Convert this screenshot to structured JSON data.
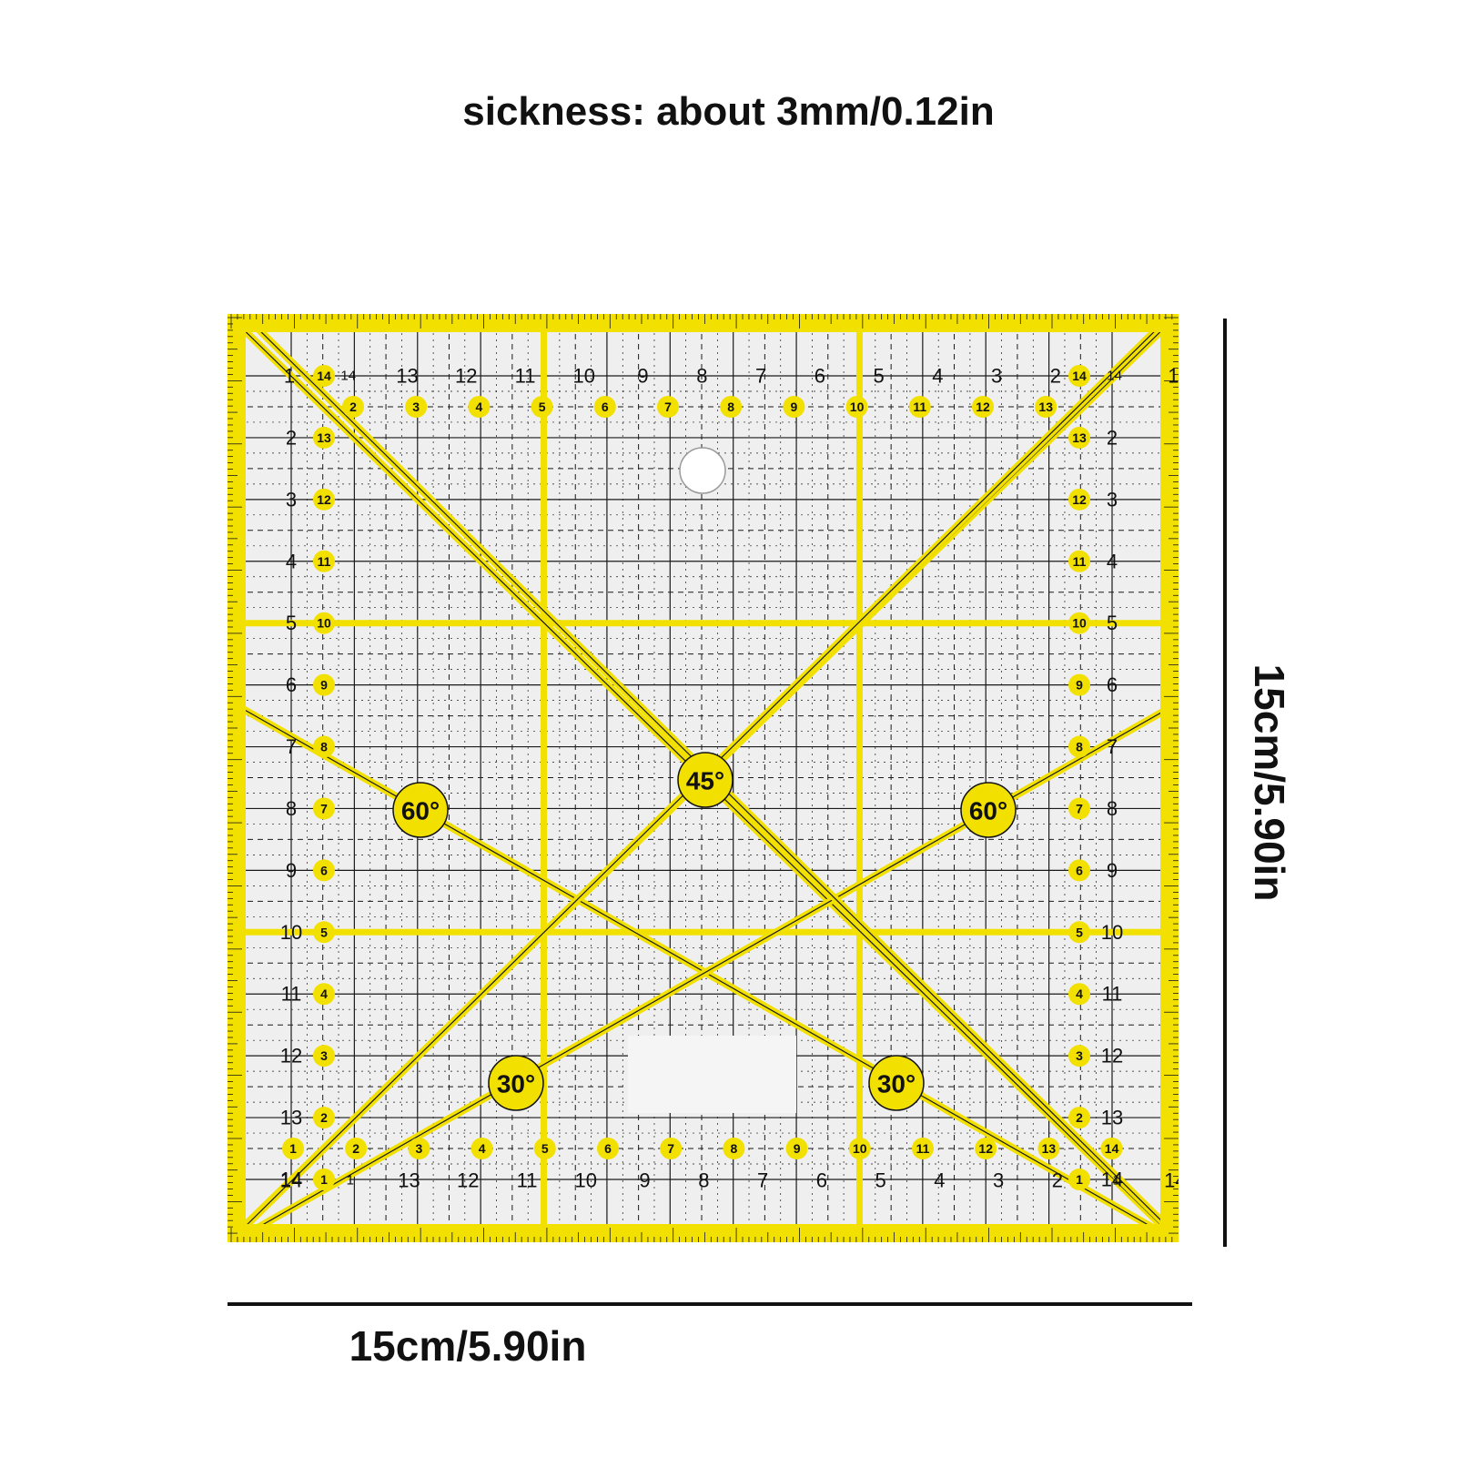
{
  "thickness_caption": "sickness: about 3mm/0.12in",
  "width_caption": "15cm/5.90in",
  "height_caption": "15cm/5.90in",
  "colors": {
    "accent": "#f2e000",
    "line": "#1a1a1a",
    "ruler_bg": "#efefef"
  },
  "ruler": {
    "angle_marks": [
      "45°",
      "60°",
      "60°",
      "30°",
      "30°"
    ],
    "outer_scale_top": [
      "1",
      "14",
      "13",
      "12",
      "11",
      "10",
      "9",
      "8",
      "7",
      "6",
      "5",
      "4",
      "3",
      "2",
      "14",
      "1"
    ],
    "outer_scale_bottom": [
      "14",
      "1",
      "13",
      "12",
      "11",
      "10",
      "9",
      "8",
      "7",
      "6",
      "5",
      "4",
      "3",
      "2",
      "1",
      "14"
    ],
    "outer_scale_left": [
      "1",
      "2",
      "3",
      "4",
      "5",
      "6",
      "7",
      "8",
      "9",
      "10",
      "11",
      "12",
      "13",
      "14"
    ],
    "outer_scale_right": [
      "1",
      "2",
      "3",
      "4",
      "5",
      "6",
      "7",
      "8",
      "9",
      "10",
      "11",
      "12",
      "13",
      "14"
    ],
    "dot_scale_top": [
      "2",
      "3",
      "4",
      "5",
      "6",
      "7",
      "8",
      "9",
      "10",
      "11",
      "12",
      "13"
    ],
    "dot_scale_bottom": [
      "1",
      "2",
      "3",
      "4",
      "5",
      "6",
      "7",
      "8",
      "9",
      "10",
      "11",
      "12",
      "13",
      "14"
    ],
    "dot_scale_left": [
      "14",
      "13",
      "12",
      "11",
      "10",
      "9",
      "8",
      "7",
      "6",
      "5",
      "4",
      "3",
      "2",
      "1"
    ],
    "dot_scale_right": [
      "14",
      "13",
      "12",
      "11",
      "10",
      "9",
      "8",
      "7",
      "6",
      "5",
      "4",
      "3",
      "2",
      "1"
    ]
  }
}
